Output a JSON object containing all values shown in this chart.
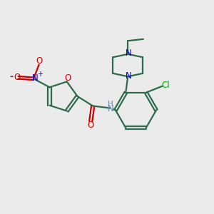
{
  "background_color": "#ebebeb",
  "bond_color": "#2d6b4a",
  "nitrogen_color": "#0000cc",
  "oxygen_color": "#cc0000",
  "chlorine_color": "#00aa00",
  "nh_color": "#6688aa",
  "figsize": [
    3.0,
    3.0
  ],
  "dpi": 100,
  "xlim": [
    0,
    10
  ],
  "ylim": [
    0,
    10
  ]
}
